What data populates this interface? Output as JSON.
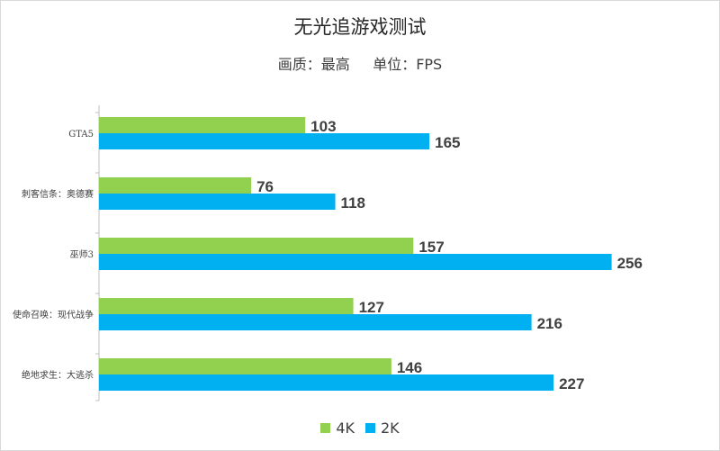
{
  "chart_data": {
    "type": "bar",
    "orientation": "horizontal",
    "title": "无光追游戏测试",
    "subtitle": "画质：最高     单位：FPS",
    "categories": [
      "GTA5",
      "刺客信条：奥德赛",
      "巫师3",
      "使命召唤：现代战争",
      "绝地求生：大逃杀"
    ],
    "series": [
      {
        "name": "4K",
        "values": [
          103,
          76,
          157,
          127,
          146
        ],
        "color": "#92d050"
      },
      {
        "name": "2K",
        "values": [
          165,
          118,
          256,
          216,
          227
        ],
        "color": "#00b0f0"
      }
    ],
    "xlim": [
      0,
      270
    ],
    "grid": false,
    "legend_position": "bottom",
    "data_labels": true
  }
}
